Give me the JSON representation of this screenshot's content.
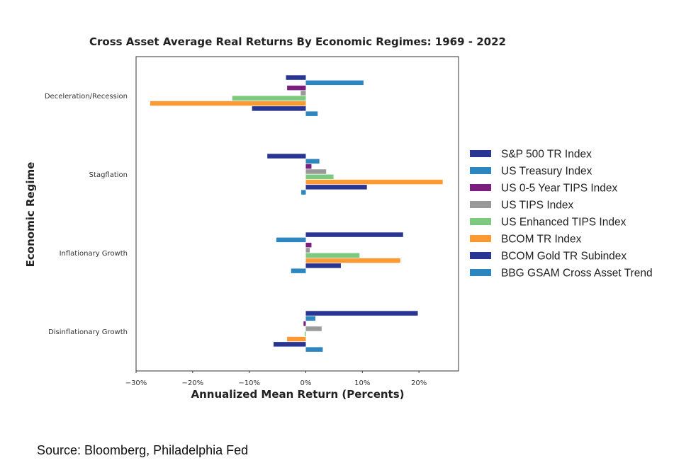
{
  "chart_data": {
    "type": "bar",
    "orientation": "horizontal",
    "title": "Cross Asset Average Real Returns By Economic Regimes: 1969 - 2022",
    "xlabel": "Annualized Mean Return (Percents)",
    "ylabel": "Economic Regime",
    "xlim": [
      -30,
      27
    ],
    "xticks": [
      -30,
      -20,
      -10,
      0,
      10,
      20
    ],
    "xtick_labels": [
      "−30%",
      "−20%",
      "−10%",
      "0%",
      "10%",
      "20%"
    ],
    "categories": [
      "Deceleration/Recession",
      "Stagflation",
      "Inflationary Growth",
      "Disinflationary Growth"
    ],
    "legend_position": "right",
    "grid": false,
    "series": [
      {
        "name": "S&P 500 TR Index",
        "color": "#283593",
        "values": [
          -3.5,
          -6.8,
          17.2,
          19.8
        ]
      },
      {
        "name": "US Treasury Index",
        "color": "#2e86c1",
        "values": [
          10.2,
          2.4,
          -5.2,
          1.7
        ]
      },
      {
        "name": "US 0-5 Year TIPS Index",
        "color": "#7b1f7e",
        "values": [
          -3.3,
          1.0,
          1.0,
          -0.4
        ]
      },
      {
        "name": "US TIPS Index",
        "color": "#999999",
        "values": [
          -0.9,
          3.6,
          0.7,
          2.8
        ]
      },
      {
        "name": "US Enhanced TIPS Index",
        "color": "#7dc97f",
        "values": [
          -13.0,
          4.9,
          9.5,
          -0.2
        ]
      },
      {
        "name": "BCOM TR Index",
        "color": "#fb9a33",
        "values": [
          -27.5,
          24.2,
          16.7,
          -3.3
        ]
      },
      {
        "name": "BCOM Gold TR Subindex",
        "color": "#283593",
        "values": [
          -9.5,
          10.8,
          6.2,
          -5.7
        ]
      },
      {
        "name": "BBG GSAM Cross Asset Trend",
        "color": "#2e86c1",
        "values": [
          2.1,
          -0.8,
          -2.6,
          3.0
        ]
      }
    ]
  },
  "source_text": "Source: Bloomberg, Philadelphia Fed"
}
